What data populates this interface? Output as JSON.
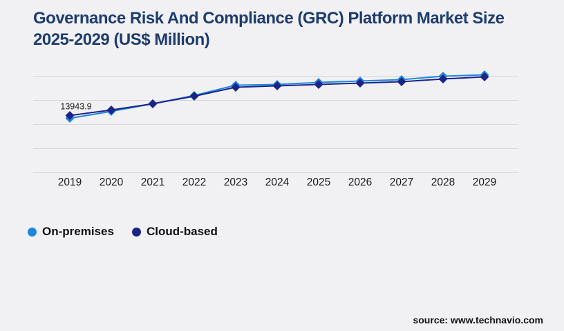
{
  "page": {
    "title": "Governance Risk And Compliance (GRC) Platform Market Size 2025-2029 (US$ Million)",
    "source": "source: www.technavio.com"
  },
  "colors": {
    "background": "#f1f1f4",
    "gridline": "#d7d7da",
    "title_text": "#1e3c6d",
    "axis_label_text": "#1a1a1a",
    "annotation_text": "#1a1a1a",
    "on_premises": "#1d86e0",
    "cloud_based": "#1c2488"
  },
  "chart_data": {
    "type": "line",
    "title": "Governance Risk And Compliance (GRC) Platform Market Size 2025-2029 (US$ Million)",
    "xlabel": "",
    "ylabel": "",
    "categories": [
      "2019",
      "2020",
      "2021",
      "2022",
      "2023",
      "2024",
      "2025",
      "2026",
      "2027",
      "2028",
      "2029"
    ],
    "series": [
      {
        "name": "On-premises",
        "color": "#1d86e0",
        "marker": "diamond",
        "values": [
          13270,
          14950,
          16800,
          18820,
          21340,
          21500,
          22010,
          22340,
          22680,
          23520,
          23860
        ]
      },
      {
        "name": "Cloud-based",
        "color": "#1c2488",
        "marker": "diamond",
        "values": [
          13943.9,
          15290,
          16800,
          18650,
          20830,
          21170,
          21500,
          21840,
          22180,
          22850,
          23350
        ]
      }
    ],
    "annotations": [
      {
        "series": "Cloud-based",
        "category": "2019",
        "text": "13943.9"
      }
    ],
    "ylim": [
      0,
      23520
    ],
    "y_axis_labels_visible": false,
    "gridlines": "horizontal",
    "legend_position": "bottom-left"
  }
}
